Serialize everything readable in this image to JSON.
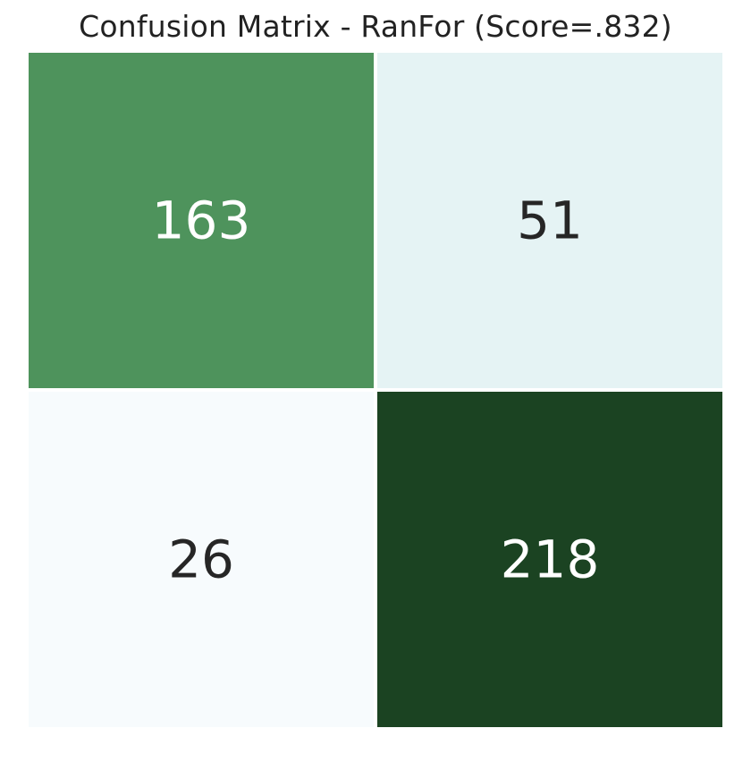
{
  "chart_data": {
    "type": "heatmap",
    "title": "Confusion Matrix - RanFor (Score=.832)",
    "matrix": [
      [
        163,
        51
      ],
      [
        26,
        218
      ]
    ],
    "colorbar": false,
    "colormap": "Greens",
    "cell_colors": [
      [
        "#4e935c",
        "#e5f3f4"
      ],
      [
        "#f7fbfd",
        "#1b4322"
      ]
    ],
    "text_colors": [
      [
        "#ffffff",
        "#262626"
      ],
      [
        "#262626",
        "#ffffff"
      ]
    ],
    "background": "#ffffff"
  }
}
